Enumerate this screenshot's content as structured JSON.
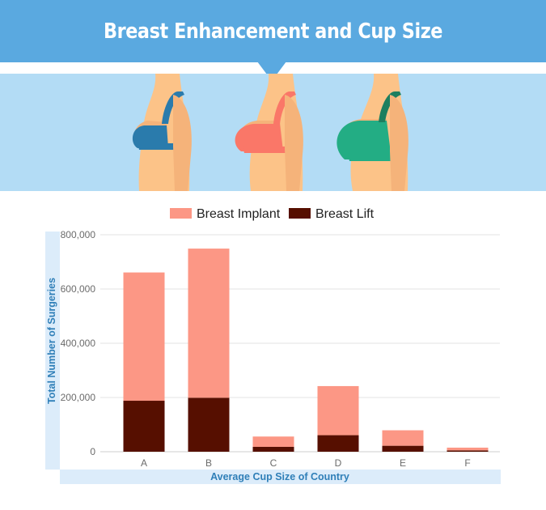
{
  "header": {
    "title": "Breast Enhancement and Cup Size"
  },
  "colors": {
    "header_bg": "#5aa9e0",
    "illustration_bg": "#b3dcf5",
    "axis_band": "#dcecfa",
    "implant": "#fc9785",
    "lift": "#560f00"
  },
  "illustration": {
    "figures": [
      {
        "name": "woman-blue-bra",
        "bra_color": "#2a7bac"
      },
      {
        "name": "woman-coral-bra",
        "bra_color": "#fa7768"
      },
      {
        "name": "woman-green-bra",
        "bra_color": "#23ad84"
      }
    ]
  },
  "chart_data": {
    "type": "bar",
    "stacked": true,
    "categories": [
      "A",
      "B",
      "C",
      "D",
      "E",
      "F"
    ],
    "series": [
      {
        "name": "Breast Implant",
        "color": "#fc9785",
        "values": [
          473000,
          550000,
          38000,
          181000,
          57000,
          10000
        ]
      },
      {
        "name": "Breast Lift",
        "color": "#560f00",
        "values": [
          188000,
          199000,
          18000,
          61000,
          22000,
          5000
        ]
      }
    ],
    "xlabel": "Average Cup Size of Country",
    "ylabel": "Total Number of Surgeries",
    "ylim": [
      0,
      800000
    ],
    "yticks": [
      0,
      200000,
      400000,
      600000,
      800000
    ],
    "ytick_labels": [
      "0",
      "200,000",
      "400,000",
      "600,000",
      "800,000"
    ],
    "grid": true,
    "legend": "top-center"
  }
}
